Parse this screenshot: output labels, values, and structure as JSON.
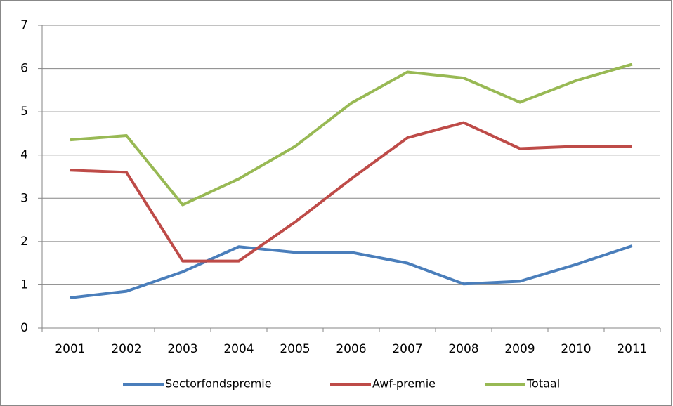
{
  "chart_data": {
    "type": "line",
    "categories": [
      "2001",
      "2002",
      "2003",
      "2004",
      "2005",
      "2006",
      "2007",
      "2008",
      "2009",
      "2010",
      "2011"
    ],
    "series": [
      {
        "name": "Sectorfondspremie",
        "color": "#4a7ebb",
        "values": [
          0.7,
          0.85,
          1.3,
          1.88,
          1.75,
          1.75,
          1.5,
          1.02,
          1.08,
          1.47,
          1.9
        ]
      },
      {
        "name": "Awf-premie",
        "color": "#be4b48",
        "values": [
          3.65,
          3.6,
          1.55,
          1.55,
          2.45,
          3.45,
          4.4,
          4.75,
          4.15,
          4.2,
          4.2
        ]
      },
      {
        "name": "Totaal",
        "color": "#98b954",
        "values": [
          4.35,
          4.45,
          2.85,
          3.45,
          4.2,
          5.2,
          5.92,
          5.78,
          5.22,
          5.72,
          6.1
        ]
      }
    ],
    "ylim": [
      0,
      7
    ],
    "yticks": [
      0,
      1,
      2,
      3,
      4,
      5,
      6,
      7
    ],
    "grid": true,
    "legend": "bottom"
  }
}
